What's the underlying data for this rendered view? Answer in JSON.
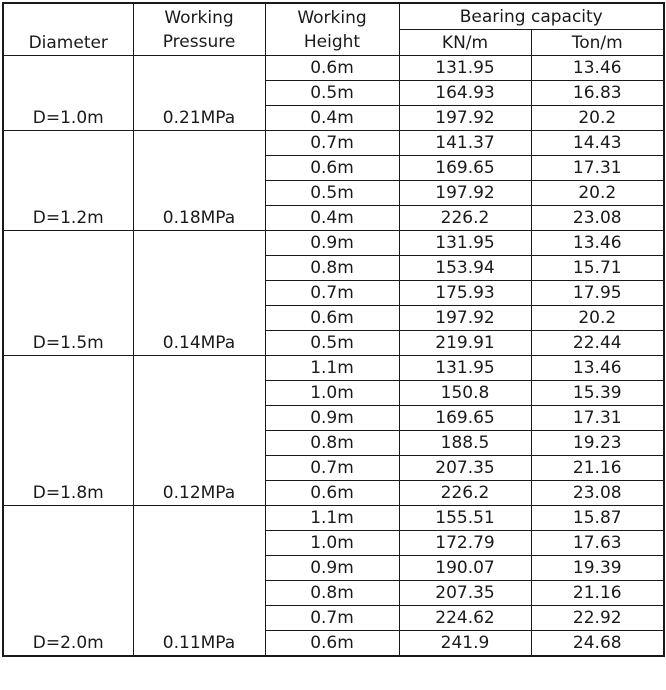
{
  "header": {
    "diameter": "Diameter",
    "pressure_l1": "Working",
    "pressure_l2": "Pressure",
    "height_l1": "Working",
    "height_l2": "Height",
    "bearing": "Bearing capacity",
    "kn": "KN/m",
    "ton": "Ton/m"
  },
  "groups": [
    {
      "diameter": "D=1.0m",
      "pressure": "0.21MPa",
      "rows": [
        {
          "height": "0.6m",
          "kn": "131.95",
          "ton": "13.46"
        },
        {
          "height": "0.5m",
          "kn": "164.93",
          "ton": "16.83"
        },
        {
          "height": "0.4m",
          "kn": "197.92",
          "ton": "20.2"
        }
      ]
    },
    {
      "diameter": "D=1.2m",
      "pressure": "0.18MPa",
      "rows": [
        {
          "height": "0.7m",
          "kn": "141.37",
          "ton": "14.43"
        },
        {
          "height": "0.6m",
          "kn": "169.65",
          "ton": "17.31"
        },
        {
          "height": "0.5m",
          "kn": "197.92",
          "ton": "20.2"
        },
        {
          "height": "0.4m",
          "kn": "226.2",
          "ton": "23.08"
        }
      ]
    },
    {
      "diameter": "D=1.5m",
      "pressure": "0.14MPa",
      "rows": [
        {
          "height": "0.9m",
          "kn": "131.95",
          "ton": "13.46"
        },
        {
          "height": "0.8m",
          "kn": "153.94",
          "ton": "15.71"
        },
        {
          "height": "0.7m",
          "kn": "175.93",
          "ton": "17.95"
        },
        {
          "height": "0.6m",
          "kn": "197.92",
          "ton": "20.2"
        },
        {
          "height": "0.5m",
          "kn": "219.91",
          "ton": "22.44"
        }
      ]
    },
    {
      "diameter": "D=1.8m",
      "pressure": "0.12MPa",
      "rows": [
        {
          "height": "1.1m",
          "kn": "131.95",
          "ton": "13.46"
        },
        {
          "height": "1.0m",
          "kn": "150.8",
          "ton": "15.39"
        },
        {
          "height": "0.9m",
          "kn": "169.65",
          "ton": "17.31"
        },
        {
          "height": "0.8m",
          "kn": "188.5",
          "ton": "19.23"
        },
        {
          "height": "0.7m",
          "kn": "207.35",
          "ton": "21.16"
        },
        {
          "height": "0.6m",
          "kn": "226.2",
          "ton": "23.08"
        }
      ]
    },
    {
      "diameter": "D=2.0m",
      "pressure": "0.11MPa",
      "rows": [
        {
          "height": "1.1m",
          "kn": "155.51",
          "ton": "15.87"
        },
        {
          "height": "1.0m",
          "kn": "172.79",
          "ton": "17.63"
        },
        {
          "height": "0.9m",
          "kn": "190.07",
          "ton": "19.39"
        },
        {
          "height": "0.8m",
          "kn": "207.35",
          "ton": "21.16"
        },
        {
          "height": "0.7m",
          "kn": "224.62",
          "ton": "22.92"
        },
        {
          "height": "0.6m",
          "kn": "241.9",
          "ton": "24.68"
        }
      ]
    }
  ]
}
